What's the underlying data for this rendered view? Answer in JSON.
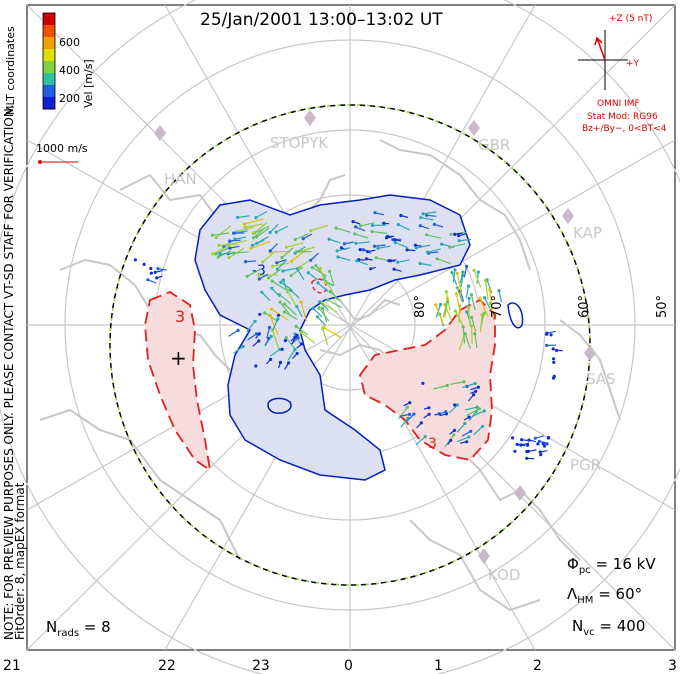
{
  "header": {
    "title": "25/Jan/2001 13:00–13:02 UT"
  },
  "colorbar": {
    "label": "Vel [m/s]",
    "ticks": [
      "600",
      "400",
      "200"
    ],
    "colors": [
      "#d00000",
      "#f05000",
      "#f0a000",
      "#e0e000",
      "#80d040",
      "#30c0a0",
      "#2060e0",
      "#1020d0"
    ]
  },
  "coords_label": "MLT coordinates",
  "ref_vector": {
    "label": "1000 m/s",
    "color": "#e00000"
  },
  "side_note": {
    "line1": "NOTE: FOR PREVIEW PURPOSES ONLY. PLEASE CONTACT VT-SD STAFF FOR VERIFICATION.",
    "line2": "FitOrder: 8, mapEX format"
  },
  "imf": {
    "z_label": "+Z (5 nT)",
    "y_label": "+Y",
    "source": "OMNI IMF",
    "stat_mod": "Stat Mod: RG96",
    "condition": "Bz+/By−, 0<BT<4",
    "color": "#e00000"
  },
  "stations": [
    "STOPYK",
    "GBR",
    "HAN",
    "KAP",
    "SAS",
    "PGR",
    "KOD"
  ],
  "lat_labels": [
    "80°",
    "70°",
    "60°",
    "50°"
  ],
  "mlt_labels": [
    "21",
    "22",
    "23",
    "0",
    "1",
    "2",
    "3"
  ],
  "stats": {
    "phi_pc_sym": "Φ",
    "phi_pc_sub": "pc",
    "phi_pc_val": " = 16 kV",
    "lambda_sym": "Λ",
    "lambda_sub": "HM",
    "lambda_val": " = 60°",
    "nvc_sym": "N",
    "nvc_sub": "vc",
    "nvc_val": " = 400",
    "nrads_sym": "N",
    "nrads_sub": "rads",
    "nrads_val": " = 8"
  },
  "contour_labels": [
    "3",
    "3",
    "-3"
  ],
  "contour_colors": {
    "negative": "#0020c0",
    "negative_fill": "#dde0f2",
    "positive": "#e02020",
    "positive_fill": "#f6dcdc",
    "coast": "#c8c8c8"
  }
}
